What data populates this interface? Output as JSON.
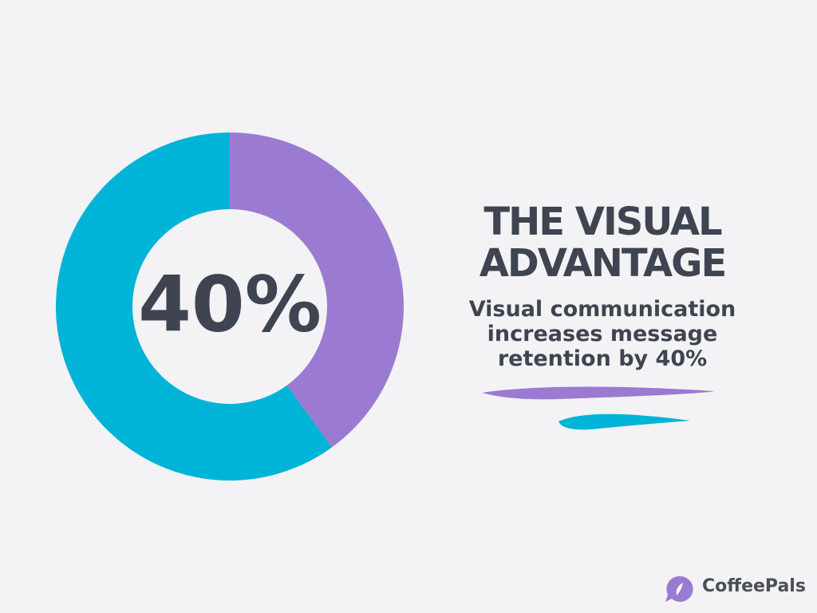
{
  "chart_data": {
    "type": "donut",
    "title": "THE VISUAL ADVANTAGE",
    "subtitle": "Visual communication increases message retention by 40%",
    "values": [
      40,
      60
    ],
    "value_labels": [
      "40%",
      null
    ],
    "colors": [
      "#9b7bd1",
      "#00b4d8"
    ]
  },
  "brand": "CoffeePals"
}
